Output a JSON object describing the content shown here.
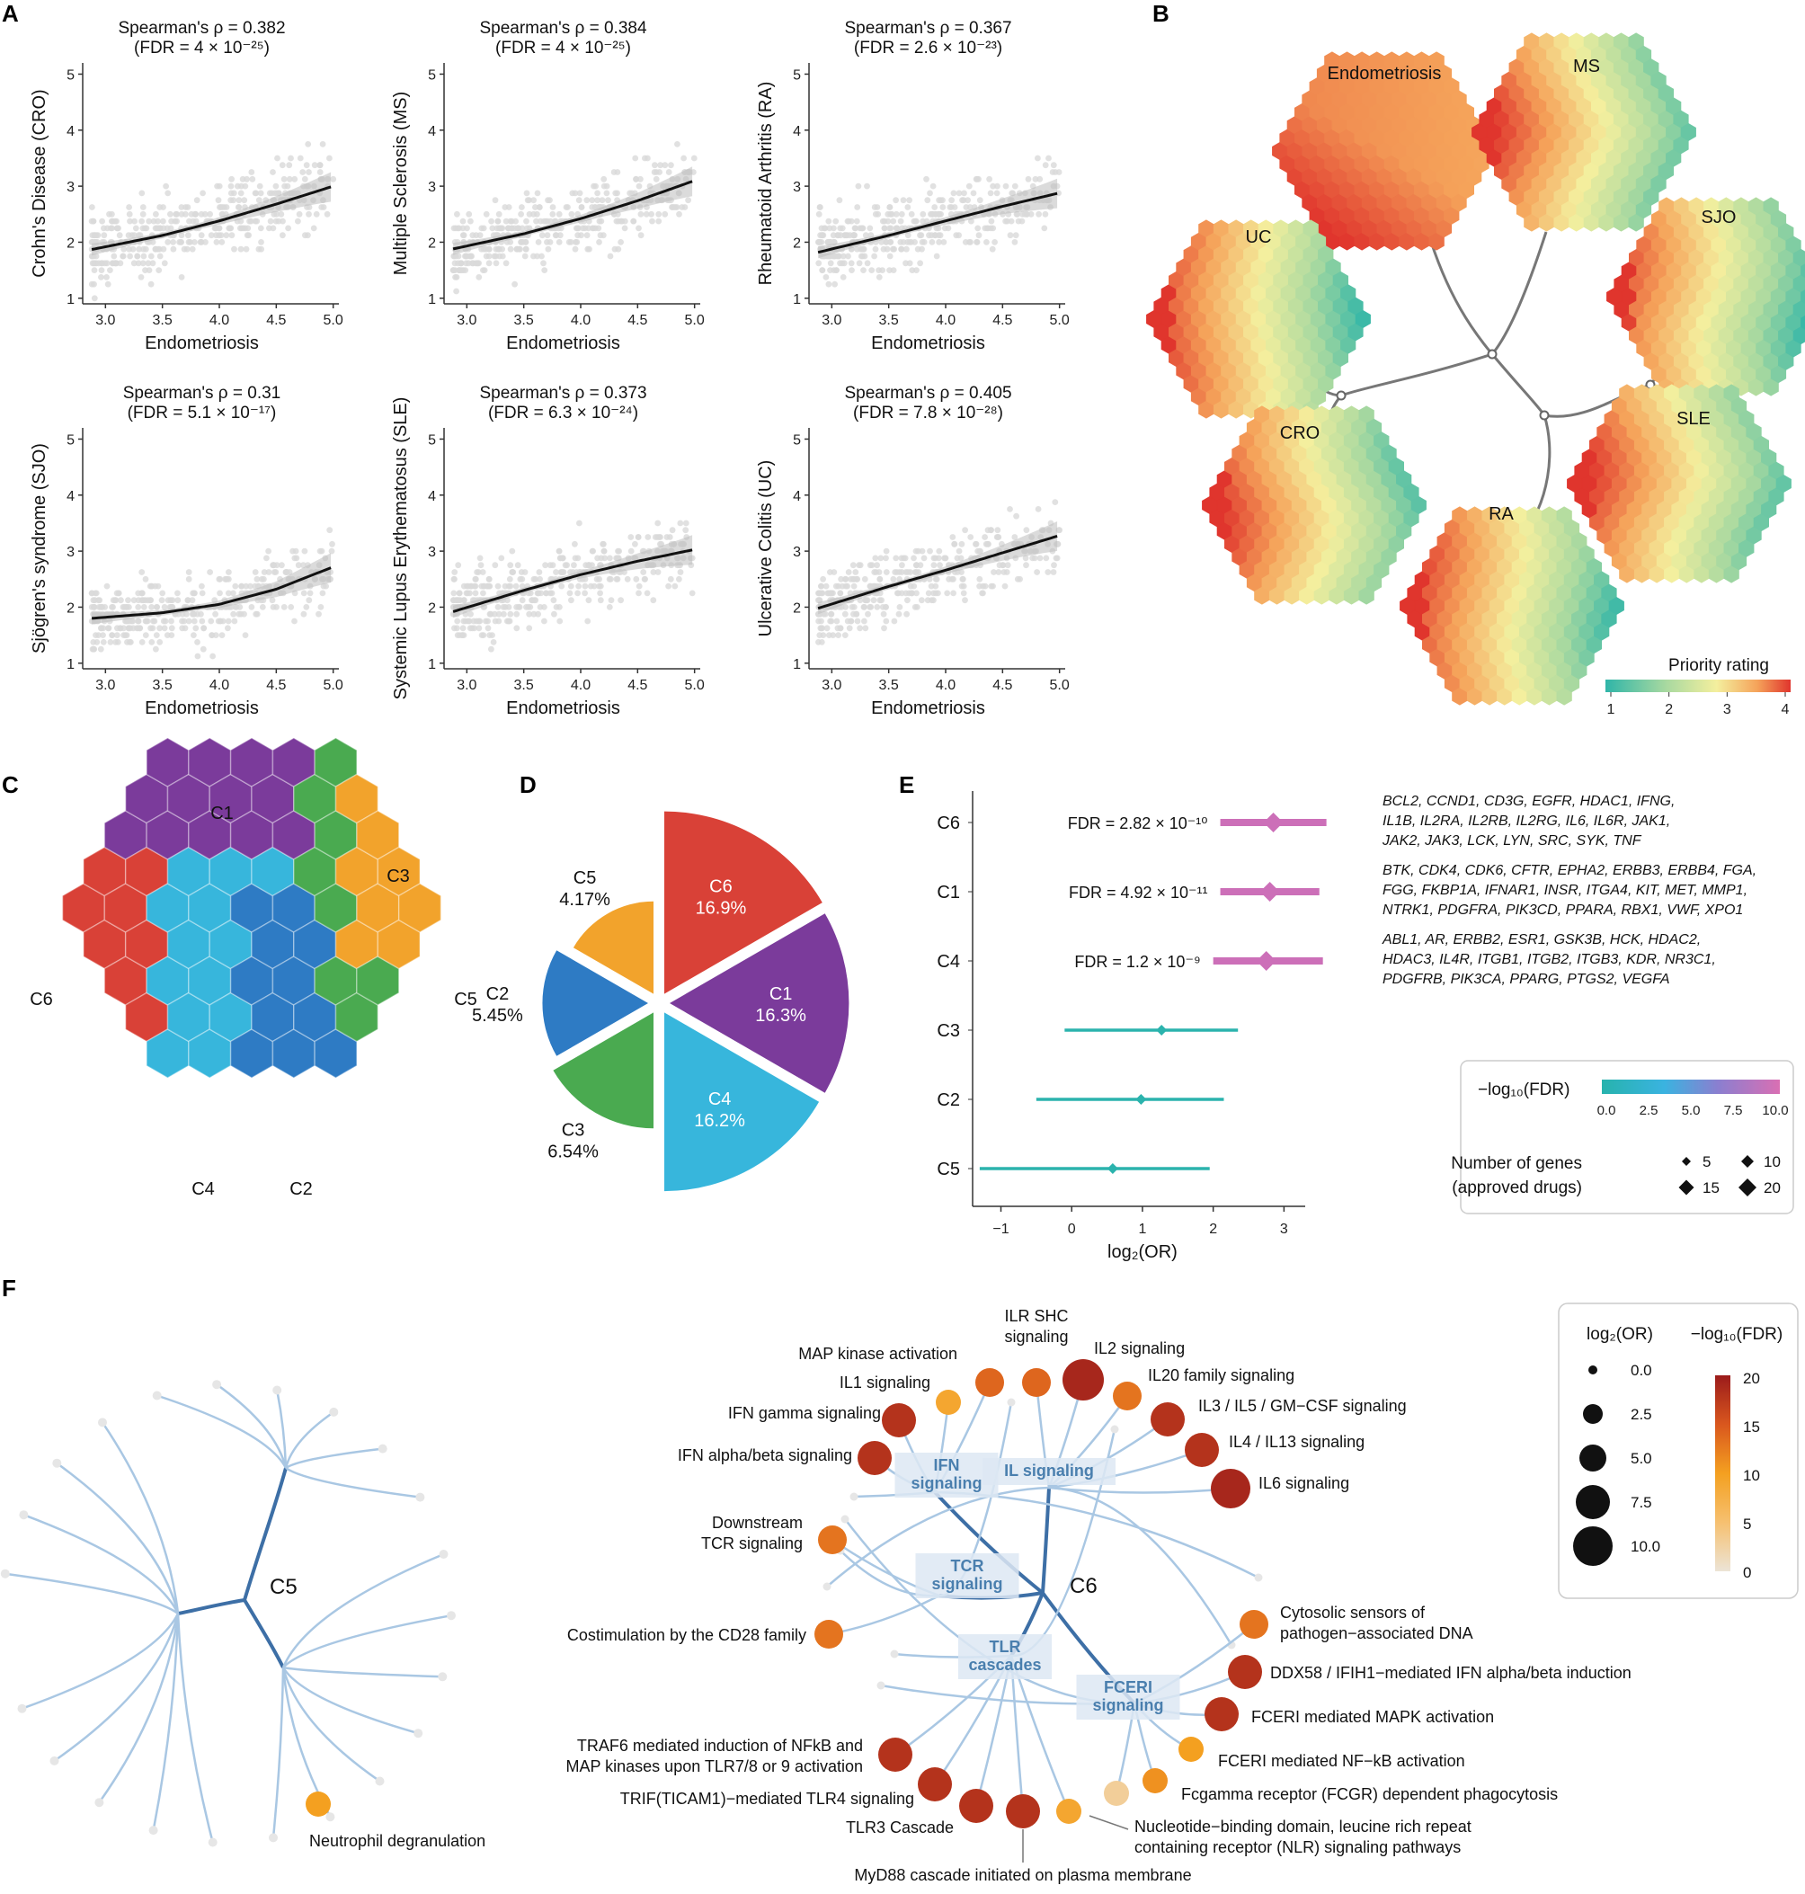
{
  "panels": {
    "A": "A",
    "B": "B",
    "C": "C",
    "D": "D",
    "E": "E",
    "F": "F"
  },
  "chart_data": [
    {
      "id": "A",
      "type": "scatter",
      "xlabel": "Endometriosis",
      "xlim": [
        2.8,
        5.05
      ],
      "ylim": [
        0.9,
        5.2
      ],
      "xticks": [
        "3.0",
        "3.5",
        "4.0",
        "4.5",
        "5.0"
      ],
      "yticks": [
        "1",
        "2",
        "3",
        "4",
        "5"
      ],
      "subplots": [
        {
          "ylabel": "Crohn's Disease (CRO)",
          "title": "Spearman's ρ = 0.382",
          "fdr": "(FDR = 4 × 10⁻²⁵)",
          "fit": [
            [
              2.88,
              1.87
            ],
            [
              3.5,
              2.12
            ],
            [
              4.0,
              2.38
            ],
            [
              4.5,
              2.68
            ],
            [
              5.0,
              3.0
            ]
          ]
        },
        {
          "ylabel": "Multiple Sclerosis (MS)",
          "title": "Spearman's ρ = 0.384",
          "fdr": "(FDR = 4 × 10⁻²⁵)",
          "fit": [
            [
              2.88,
              1.88
            ],
            [
              3.5,
              2.15
            ],
            [
              4.0,
              2.42
            ],
            [
              4.5,
              2.74
            ],
            [
              5.0,
              3.1
            ]
          ]
        },
        {
          "ylabel": "Rheumatoid Arthritis (RA)",
          "title": "Spearman's ρ = 0.367",
          "fdr": "(FDR = 2.6 × 10⁻²³)",
          "fit": [
            [
              2.88,
              1.82
            ],
            [
              3.5,
              2.12
            ],
            [
              4.0,
              2.38
            ],
            [
              4.5,
              2.64
            ],
            [
              5.0,
              2.88
            ]
          ]
        },
        {
          "ylabel": "Sjögren's syndrome (SJO)",
          "title": "Spearman's ρ = 0.31",
          "fdr": "(FDR = 5.1 × 10⁻¹⁷)",
          "fit": [
            [
              2.88,
              1.8
            ],
            [
              3.5,
              1.9
            ],
            [
              4.0,
              2.05
            ],
            [
              4.5,
              2.32
            ],
            [
              5.0,
              2.72
            ]
          ]
        },
        {
          "ylabel": "Systemic Lupus Erythematosus (SLE)",
          "title": "Spearman's ρ = 0.373",
          "fdr": "(FDR = 6.3 × 10⁻²⁴)",
          "fit": [
            [
              2.88,
              1.92
            ],
            [
              3.5,
              2.3
            ],
            [
              4.0,
              2.58
            ],
            [
              4.5,
              2.82
            ],
            [
              5.0,
              3.03
            ]
          ]
        },
        {
          "ylabel": "Ulcerative Colitis (UC)",
          "title": "Spearman's ρ = 0.405",
          "fdr": "(FDR = 7.8 × 10⁻²⁸)",
          "fit": [
            [
              2.88,
              1.98
            ],
            [
              3.5,
              2.37
            ],
            [
              4.0,
              2.66
            ],
            [
              4.5,
              2.97
            ],
            [
              5.0,
              3.28
            ]
          ]
        }
      ]
    },
    {
      "id": "B",
      "type": "heatmap",
      "nodes": [
        "Endometriosis",
        "MS",
        "SJO",
        "UC",
        "CRO",
        "SLE",
        "RA"
      ],
      "legend_title": "Priority rating",
      "legend_ticks": [
        "1",
        "2",
        "3",
        "4"
      ],
      "colors": [
        "#2fb5a8",
        "#a9d9a0",
        "#f4ef9e",
        "#f5a35a",
        "#e0352d"
      ]
    },
    {
      "id": "C",
      "type": "heatmap",
      "clusters": [
        {
          "name": "C1",
          "color": "#7b3b9b"
        },
        {
          "name": "C2",
          "color": "#2e7bc4"
        },
        {
          "name": "C3",
          "color": "#4aaa50"
        },
        {
          "name": "C4",
          "color": "#37b6dc"
        },
        {
          "name": "C5",
          "color": "#f2a32c"
        },
        {
          "name": "C6",
          "color": "#d94137"
        }
      ]
    },
    {
      "id": "D",
      "type": "pie",
      "slices": [
        {
          "name": "C6",
          "pct": 16.9,
          "label": "16.9%",
          "color": "#d94137"
        },
        {
          "name": "C1",
          "pct": 16.3,
          "label": "16.3%",
          "color": "#7b3b9b"
        },
        {
          "name": "C4",
          "pct": 16.2,
          "label": "16.2%",
          "color": "#37b6dc"
        },
        {
          "name": "C3",
          "pct": 6.54,
          "label": "6.54%",
          "color": "#4aaa50"
        },
        {
          "name": "C2",
          "pct": 5.45,
          "label": "5.45%",
          "color": "#2e7bc4"
        },
        {
          "name": "C5",
          "pct": 4.17,
          "label": "4.17%",
          "color": "#f2a32c"
        }
      ]
    },
    {
      "id": "E",
      "type": "scatter",
      "xlabel": "log₂(OR)",
      "xlim": [
        -1.4,
        3.3
      ],
      "xticks": [
        "−1",
        "0",
        "1",
        "2",
        "3"
      ],
      "rows": [
        {
          "name": "C6",
          "or": 2.85,
          "lo": 2.1,
          "hi": 3.6,
          "fdr": "FDR = 2.82 × 10⁻¹⁰",
          "sig": true,
          "genes": [
            "BCL2, CCND1, CD3G, EGFR, HDAC1, IFNG,",
            "IL1B, IL2RA, IL2RB, IL2RG, IL6, IL6R, JAK1,",
            "JAK2, JAK3, LCK, LYN, SRC, SYK, TNF"
          ]
        },
        {
          "name": "C1",
          "or": 2.8,
          "lo": 2.1,
          "hi": 3.5,
          "fdr": "FDR = 4.92 × 10⁻¹¹",
          "sig": true,
          "genes": [
            "BTK, CDK4, CDK6, CFTR, EPHA2, ERBB3, ERBB4, FGA,",
            "FGG, FKBP1A, IFNAR1, INSR, ITGA4, KIT, MET, MMP1,",
            "NTRK1, PDGFRA, PIK3CD, PPARA, RBX1, VWF, XPO1"
          ]
        },
        {
          "name": "C4",
          "or": 2.75,
          "lo": 2.0,
          "hi": 3.55,
          "fdr": "FDR = 1.2 × 10⁻⁹",
          "sig": true,
          "genes": [
            "ABL1, AR, ERBB2, ESR1, GSK3B, HCK, HDAC2,",
            "HDAC3, IL4R, ITGB1, ITGB2, ITGB3, KDR, NR3C1,",
            "PDGFRB, PIK3CA, PPARG, PTGS2, VEGFA"
          ]
        },
        {
          "name": "C3",
          "or": 1.27,
          "lo": -0.1,
          "hi": 2.35,
          "fdr": "",
          "sig": false,
          "genes": []
        },
        {
          "name": "C2",
          "or": 0.98,
          "lo": -0.5,
          "hi": 2.15,
          "fdr": "",
          "sig": false,
          "genes": []
        },
        {
          "name": "C5",
          "or": 0.58,
          "lo": -1.3,
          "hi": 1.95,
          "fdr": "",
          "sig": false,
          "genes": []
        }
      ],
      "legend": {
        "color_title": "−log₁₀(FDR)",
        "color_ticks": [
          "0.0",
          "2.5",
          "5.0",
          "7.5",
          "10.0"
        ],
        "size_title_1": "Number of genes",
        "size_title_2": "(approved drugs)",
        "sizes": [
          "5",
          "10",
          "15",
          "20"
        ]
      }
    },
    {
      "id": "F",
      "type": "scatter",
      "c5_label": "C5",
      "c6_label": "C6",
      "c5_terms": [
        {
          "label": "Neutrophil degranulation",
          "fdr": 10
        }
      ],
      "categories": [
        "IFN\nsignaling",
        "IL signaling",
        "TCR\nsignaling",
        "TLR\ncascades",
        "FCERI\nsignaling"
      ],
      "terms": [
        {
          "label": "MAP kinase activation",
          "fdr": 14
        },
        {
          "label": "IL1 signaling",
          "fdr": 9
        },
        {
          "label": "ILR SHC\nsignaling",
          "fdr": 14
        },
        {
          "label": "IL2 signaling",
          "fdr": 19
        },
        {
          "label": "IL20 family signaling",
          "fdr": 13
        },
        {
          "label": "IFN gamma signaling",
          "fdr": 18
        },
        {
          "label": "IL3 / IL5 / GM−CSF signaling",
          "fdr": 18
        },
        {
          "label": "IL4 / IL13 signaling",
          "fdr": 18
        },
        {
          "label": "IFN alpha/beta signaling",
          "fdr": 18
        },
        {
          "label": "IL6 signaling",
          "fdr": 19
        },
        {
          "label": "Downstream\nTCR signaling",
          "fdr": 13
        },
        {
          "label": "Costimulation by the CD28 family",
          "fdr": 13
        },
        {
          "label": "Cytosolic sensors of\npathogen−associated DNA",
          "fdr": 13
        },
        {
          "label": "DDX58 / IFIH1−mediated IFN alpha/beta induction",
          "fdr": 18
        },
        {
          "label": "FCERI mediated MAPK activation",
          "fdr": 18
        },
        {
          "label": "FCERI mediated NF−kB activation",
          "fdr": 10
        },
        {
          "label": "TRAF6 mediated induction of NFkB and\nMAP kinases upon TLR7/8 or 9 activation",
          "fdr": 18
        },
        {
          "label": "Fcgamma receptor (FCGR) dependent phagocytosis",
          "fdr": 11
        },
        {
          "label": "TRIF(TICAM1)−mediated TLR4 signaling",
          "fdr": 18
        },
        {
          "label": "TLR3 Cascade",
          "fdr": 18
        },
        {
          "label": "MyD88 cascade initiated on plasma membrane",
          "fdr": 18
        },
        {
          "label": "Nucleotide−binding domain, leucine rich repeat\ncontaining receptor (NLR) signaling pathways",
          "fdr": 9
        },
        {
          "label": "",
          "fdr": 3
        }
      ],
      "legend": {
        "size_title": "log₂(OR)",
        "sizes": [
          "0.0",
          "2.5",
          "5.0",
          "7.5",
          "10.0"
        ],
        "color_title": "−log₁₀(FDR)",
        "color_ticks": [
          "20",
          "15",
          "10",
          "5",
          "0"
        ]
      }
    }
  ]
}
